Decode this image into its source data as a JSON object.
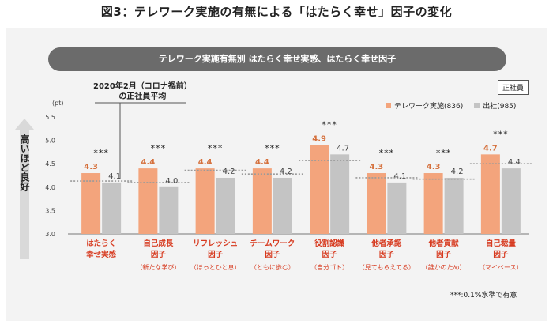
{
  "figure_title": "図3：テレワーク実施の有無による「はたらく幸せ」因子の変化",
  "subtitle": "テレワーク実施有無別 はたらく幸せ実感、はたらく幸せ因子",
  "badge": "正社員",
  "note_line1": "2020年2月（コロナ禍前）",
  "note_line2": "の正社員平均",
  "ylabel": "高いほど良好",
  "unit": "(pt)",
  "footnote": "***:0.1%水準で有意",
  "colors": {
    "telework": "#f3a47c",
    "office": "#c4c4c4",
    "significance_text": "#222222",
    "category_text": "#d73a1f",
    "dotted": "#9a9a9a"
  },
  "chart_data": {
    "type": "bar",
    "ylim": [
      3.0,
      5.5
    ],
    "yticks": [
      "5.5",
      "5.0",
      "4.5",
      "4.0",
      "3.5",
      "3.0"
    ],
    "categories": [
      {
        "line1": "はたらく",
        "line2": "幸せ実感",
        "sub": ""
      },
      {
        "line1": "自己成長",
        "line2": "因子",
        "sub": "（新たな学び）"
      },
      {
        "line1": "リフレッシュ",
        "line2": "因子",
        "sub": "（ほっとひと息）"
      },
      {
        "line1": "チームワーク",
        "line2": "因子",
        "sub": "（ともに歩む）"
      },
      {
        "line1": "役割認識",
        "line2": "因子",
        "sub": "（自分ゴト）"
      },
      {
        "line1": "他者承認",
        "line2": "因子",
        "sub": "（見てもらえてる）"
      },
      {
        "line1": "他者貢献",
        "line2": "因子",
        "sub": "（誰かのため）"
      },
      {
        "line1": "自己裁量",
        "line2": "因子",
        "sub": "（マイペース）"
      }
    ],
    "series": [
      {
        "name": "テレワーク実施(836)",
        "values": [
          4.3,
          4.4,
          4.4,
          4.4,
          4.9,
          4.3,
          4.3,
          4.7
        ],
        "labels": [
          "4.3",
          "4.4",
          "4.4",
          "4.4",
          "4.9",
          "4.3",
          "4.3",
          "4.7"
        ]
      },
      {
        "name": "出社(985)",
        "values": [
          4.1,
          4.0,
          4.2,
          4.2,
          4.7,
          4.1,
          4.2,
          4.4
        ],
        "labels": [
          "4.1",
          "4.0",
          "4.2",
          "4.2",
          "4.7",
          "4.1",
          "4.2",
          "4.4"
        ]
      }
    ],
    "baseline_2020": [
      4.13,
      4.1,
      4.36,
      4.28,
      4.57,
      4.2,
      4.17,
      4.5
    ],
    "significance": [
      "***",
      "***",
      "***",
      "***",
      "***",
      "***",
      "***",
      "***"
    ]
  }
}
